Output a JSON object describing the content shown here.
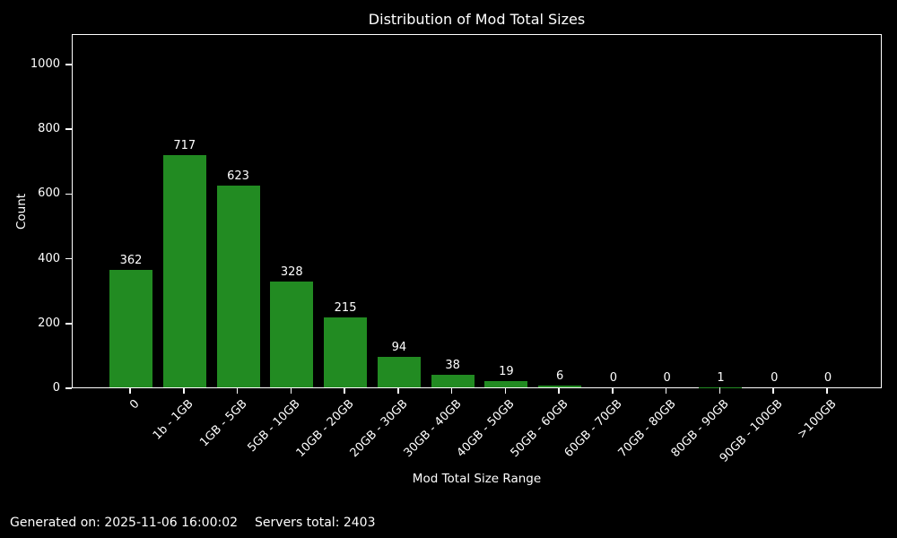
{
  "chart_data": {
    "type": "bar",
    "title": "Distribution of Mod Total Sizes",
    "xlabel": "Mod Total Size Range",
    "ylabel": "Count",
    "categories": [
      "0",
      "1b - 1GB",
      "1GB - 5GB",
      "5GB - 10GB",
      "10GB - 20GB",
      "20GB - 30GB",
      "30GB - 40GB",
      "40GB - 50GB",
      "50GB - 60GB",
      "60GB - 70GB",
      "70GB - 80GB",
      "80GB - 90GB",
      "90GB - 100GB",
      ">100GB"
    ],
    "values": [
      362,
      717,
      623,
      328,
      215,
      94,
      38,
      19,
      6,
      0,
      0,
      1,
      0,
      0
    ],
    "yticks": [
      0,
      200,
      400,
      600,
      800,
      1000
    ],
    "ylim": [
      0,
      1094
    ],
    "grid": false,
    "legend": "none",
    "xtick_rotation": 45,
    "colors": {
      "background": "#000000",
      "text": "#ffffff",
      "bar": "#228b22",
      "spine": "#ffffff"
    }
  },
  "footer": {
    "generated": "Generated on: 2025-11-06 16:00:02",
    "servers_total": "Servers total: 2403"
  }
}
